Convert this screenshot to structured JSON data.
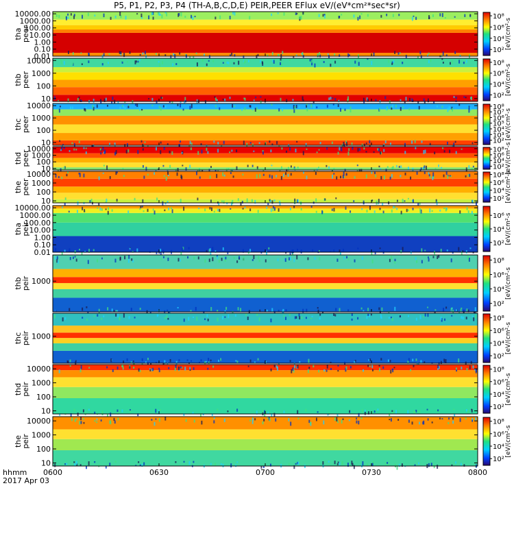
{
  "chart_data": {
    "type": "heatmap",
    "title": "P5, P1, P2, P3, P4 (TH-A,B,C,D,E) PEIR,PEER EFlux eV/(eV*cm²*sec*sr)",
    "x_axis": {
      "label_lines": [
        "hhmm",
        "2017 Apr 03"
      ],
      "ticks": [
        "0600",
        "0630",
        "0700",
        "0730",
        "0800"
      ],
      "tick_values": [
        0,
        30,
        60,
        90,
        120
      ],
      "range": [
        0,
        120
      ]
    },
    "colorbar": {
      "scale": "log",
      "colors": [
        "#2a0870",
        "#0040ff",
        "#00d0ff",
        "#20e080",
        "#ffff00",
        "#ff8000",
        "#e00000"
      ]
    },
    "panels": [
      {
        "label_lines": [
          "tha",
          "peer"
        ],
        "yscale": "log",
        "ylim": [
          0.01,
          20000
        ],
        "y_ticks": [
          "0.01",
          "0.10",
          "1.00",
          "10.00",
          "100.00",
          "1000.00",
          "10000.00"
        ],
        "y_tick_values": [
          0.01,
          0.1,
          1,
          10,
          100,
          1000,
          10000
        ],
        "cbar_ticks": [
          "10⁸",
          "10⁶",
          "10⁴",
          "10²"
        ],
        "cbar_tick_fracs": [
          0.92,
          0.66,
          0.4,
          0.14
        ],
        "cbar_label": "[eV/(cm²-s",
        "bands": [
          {
            "from": 0.01,
            "to": 0.03,
            "color": "#ff8c00"
          },
          {
            "from": 0.03,
            "to": 20,
            "color": "#d50000"
          },
          {
            "from": 20,
            "to": 60,
            "color": "#ff8000"
          },
          {
            "from": 60,
            "to": 250,
            "color": "#ffcc00"
          },
          {
            "from": 250,
            "to": 1500,
            "color": "#ffee30"
          },
          {
            "from": 1500,
            "to": 20000,
            "color": "#9cee60"
          }
        ]
      },
      {
        "label_lines": [
          "thb",
          "peer"
        ],
        "yscale": "log",
        "ylim": [
          6,
          15000
        ],
        "y_ticks": [
          "10",
          "100",
          "1000",
          "10000"
        ],
        "y_tick_values": [
          10,
          100,
          1000,
          10000
        ],
        "cbar_ticks": [
          "10⁸",
          "10⁶",
          "10⁴",
          "10²"
        ],
        "cbar_tick_fracs": [
          0.92,
          0.66,
          0.4,
          0.14
        ],
        "cbar_label": "[eV/(cm²-s",
        "bands": [
          {
            "from": 6,
            "to": 20,
            "color": "#e00000"
          },
          {
            "from": 20,
            "to": 80,
            "color": "#ff6000"
          },
          {
            "from": 80,
            "to": 300,
            "color": "#ffa000"
          },
          {
            "from": 300,
            "to": 1200,
            "color": "#ffe000"
          },
          {
            "from": 1200,
            "to": 3000,
            "color": "#c8f040"
          },
          {
            "from": 3000,
            "to": 15000,
            "color": "#40d8a0"
          }
        ]
      },
      {
        "label_lines": [
          "thc",
          "peer"
        ],
        "yscale": "log",
        "ylim": [
          6,
          15000
        ],
        "y_ticks": [
          "10",
          "100",
          "1000",
          "10000"
        ],
        "y_tick_values": [
          10,
          100,
          1000,
          10000
        ],
        "cbar_ticks": [
          "10⁸",
          "10⁷",
          "10⁶",
          "10⁵",
          "10⁴",
          "10³",
          "10²"
        ],
        "cbar_tick_fracs": [
          0.95,
          0.81,
          0.67,
          0.53,
          0.39,
          0.25,
          0.11
        ],
        "cbar_label": "[eV/(cm²-s",
        "bands": [
          {
            "from": 6,
            "to": 15,
            "color": "#ff4000"
          },
          {
            "from": 15,
            "to": 60,
            "color": "#ffa000"
          },
          {
            "from": 60,
            "to": 300,
            "color": "#ffe030"
          },
          {
            "from": 300,
            "to": 1500,
            "color": "#ff9000"
          },
          {
            "from": 1500,
            "to": 5000,
            "color": "#90e860"
          },
          {
            "from": 5000,
            "to": 15000,
            "color": "#20b0ff"
          }
        ]
      },
      {
        "label_lines": [
          "thd",
          "peer"
        ],
        "yscale": "log",
        "ylim": [
          6,
          20000
        ],
        "y_ticks": [
          "10",
          "100",
          "1000",
          "10000"
        ],
        "y_tick_values": [
          10,
          100,
          1000,
          10000
        ],
        "cbar_ticks": [
          "10⁸",
          "10⁶",
          "10⁴",
          "10²"
        ],
        "cbar_tick_fracs": [
          0.92,
          0.66,
          0.4,
          0.14
        ],
        "cbar_label": "[eV/(cm²-s",
        "bands": [
          {
            "from": 6,
            "to": 15,
            "color": "#80e070"
          },
          {
            "from": 15,
            "to": 80,
            "color": "#ffe030"
          },
          {
            "from": 80,
            "to": 400,
            "color": "#ffb000"
          },
          {
            "from": 400,
            "to": 2000,
            "color": "#ff5000"
          },
          {
            "from": 2000,
            "to": 20000,
            "color": "#e80000"
          }
        ]
      },
      {
        "label_lines": [
          "the",
          "peer"
        ],
        "yscale": "log",
        "ylim": [
          6,
          20000
        ],
        "y_ticks": [
          "10",
          "100",
          "1000",
          "10000"
        ],
        "y_tick_values": [
          10,
          100,
          1000,
          10000
        ],
        "cbar_ticks": [
          "10⁸",
          "10⁶",
          "10⁴",
          "10²"
        ],
        "cbar_tick_fracs": [
          0.92,
          0.66,
          0.4,
          0.14
        ],
        "cbar_label": "[eV/(cm²-s",
        "bands": [
          {
            "from": 6,
            "to": 15,
            "color": "#c8f040"
          },
          {
            "from": 15,
            "to": 80,
            "color": "#ffe030"
          },
          {
            "from": 80,
            "to": 400,
            "color": "#ffb000"
          },
          {
            "from": 400,
            "to": 3000,
            "color": "#ff4000"
          },
          {
            "from": 3000,
            "to": 20000,
            "color": "#ff8000"
          }
        ]
      },
      {
        "label_lines": [
          "tha",
          "peir"
        ],
        "yscale": "log",
        "ylim": [
          0.01,
          20000
        ],
        "y_ticks": [
          "0.01",
          "0.10",
          "1.00",
          "10.00",
          "100.00",
          "1000.00",
          "10000.00"
        ],
        "y_tick_values": [
          0.01,
          0.1,
          1,
          10,
          100,
          1000,
          10000
        ],
        "cbar_ticks": [
          "10⁶",
          "10⁴",
          "10²"
        ],
        "cbar_tick_fracs": [
          0.8,
          0.5,
          0.2
        ],
        "cbar_label": "[eV/(cm²-s",
        "bands": [
          {
            "from": 0.01,
            "to": 1.5,
            "color": "#1040c0"
          },
          {
            "from": 1.5,
            "to": 100,
            "color": "#30d0a0"
          },
          {
            "from": 100,
            "to": 2000,
            "color": "#50e070"
          },
          {
            "from": 2000,
            "to": 8000,
            "color": "#f0f020"
          },
          {
            "from": 8000,
            "to": 20000,
            "color": "#ffa000"
          }
        ]
      },
      {
        "label_lines": [
          "thb",
          "peir"
        ],
        "yscale": "log",
        "ylim": [
          30,
          20000
        ],
        "y_ticks": [
          "1000"
        ],
        "y_tick_values": [
          1000
        ],
        "cbar_ticks": [
          "10⁸",
          "10⁶",
          "10⁴",
          "10²"
        ],
        "cbar_tick_fracs": [
          0.92,
          0.66,
          0.4,
          0.14
        ],
        "cbar_label": "[eV/(cm²-s",
        "bands": [
          {
            "from": 30,
            "to": 150,
            "color": "#1060d0"
          },
          {
            "from": 150,
            "to": 400,
            "color": "#40d0a0"
          },
          {
            "from": 400,
            "to": 800,
            "color": "#ffe030"
          },
          {
            "from": 800,
            "to": 1600,
            "color": "#ff3000"
          },
          {
            "from": 1600,
            "to": 4000,
            "color": "#ffb000"
          },
          {
            "from": 4000,
            "to": 20000,
            "color": "#50d0b0"
          }
        ]
      },
      {
        "label_lines": [
          "thc",
          "peir"
        ],
        "yscale": "log",
        "ylim": [
          30,
          20000
        ],
        "y_ticks": [
          "1000"
        ],
        "y_tick_values": [
          1000
        ],
        "cbar_ticks": [
          "10⁸",
          "10⁶",
          "10⁴",
          "10²"
        ],
        "cbar_tick_fracs": [
          0.92,
          0.66,
          0.4,
          0.14
        ],
        "cbar_label": "[eV/(cm²-s",
        "bands": [
          {
            "from": 30,
            "to": 150,
            "color": "#1060d0"
          },
          {
            "from": 150,
            "to": 400,
            "color": "#40d0a0"
          },
          {
            "from": 400,
            "to": 800,
            "color": "#ffd020"
          },
          {
            "from": 800,
            "to": 1600,
            "color": "#ff3000"
          },
          {
            "from": 1600,
            "to": 4000,
            "color": "#ffc020"
          },
          {
            "from": 4000,
            "to": 20000,
            "color": "#30c0c0"
          }
        ]
      },
      {
        "label_lines": [
          "thd",
          "peir"
        ],
        "yscale": "log",
        "ylim": [
          6,
          20000
        ],
        "y_ticks": [
          "10",
          "100",
          "1000",
          "10000"
        ],
        "y_tick_values": [
          10,
          100,
          1000,
          10000
        ],
        "cbar_ticks": [
          "10⁸",
          "10⁶",
          "10⁴",
          "10²"
        ],
        "cbar_tick_fracs": [
          0.92,
          0.66,
          0.4,
          0.14
        ],
        "cbar_label": "[eV/(cm²-s",
        "bands": [
          {
            "from": 6,
            "to": 80,
            "color": "#30d8a0"
          },
          {
            "from": 80,
            "to": 500,
            "color": "#90e860"
          },
          {
            "from": 500,
            "to": 2500,
            "color": "#ffe030"
          },
          {
            "from": 2500,
            "to": 8000,
            "color": "#ff9000"
          },
          {
            "from": 8000,
            "to": 20000,
            "color": "#ff3000"
          }
        ]
      },
      {
        "label_lines": [
          "the",
          "peir"
        ],
        "yscale": "log",
        "ylim": [
          6,
          20000
        ],
        "y_ticks": [
          "10",
          "100",
          "1000",
          "10000"
        ],
        "y_tick_values": [
          10,
          100,
          1000,
          10000
        ],
        "cbar_ticks": [
          "10⁸",
          "10⁶",
          "10⁴",
          "10²"
        ],
        "cbar_tick_fracs": [
          0.92,
          0.66,
          0.4,
          0.14
        ],
        "cbar_label": "[eV/(cm²-s",
        "bands": [
          {
            "from": 6,
            "to": 80,
            "color": "#40d8a0"
          },
          {
            "from": 80,
            "to": 500,
            "color": "#a0e850"
          },
          {
            "from": 500,
            "to": 2500,
            "color": "#ffe030"
          },
          {
            "from": 2500,
            "to": 20000,
            "color": "#ff9000"
          }
        ]
      }
    ],
    "bottom_label": "[eV/(cm²-s"
  }
}
